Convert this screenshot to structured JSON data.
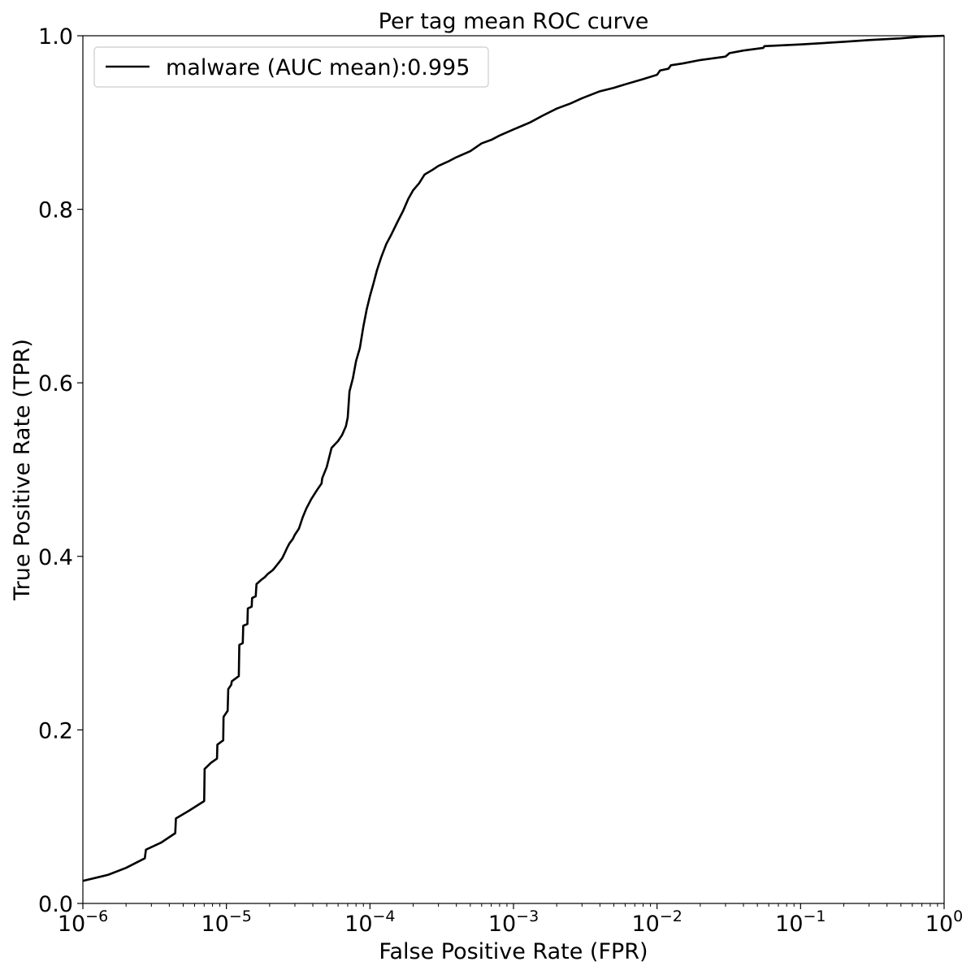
{
  "chart_data": {
    "type": "line",
    "title": "Per tag mean ROC curve",
    "xlabel": "False Positive Rate (FPR)",
    "ylabel": "True Positive Rate (TPR)",
    "xscale": "log",
    "xlim": [
      1e-06,
      1
    ],
    "ylim": [
      0,
      1
    ],
    "grid": false,
    "legend": {
      "placement": "top-left"
    },
    "x_ticks": [
      {
        "value": 1e-06,
        "base": "10",
        "exp": "−6"
      },
      {
        "value": 1e-05,
        "base": "10",
        "exp": "−5"
      },
      {
        "value": 0.0001,
        "base": "10",
        "exp": "−4"
      },
      {
        "value": 0.001,
        "base": "10",
        "exp": "−3"
      },
      {
        "value": 0.01,
        "base": "10",
        "exp": "−2"
      },
      {
        "value": 0.1,
        "base": "10",
        "exp": "−1"
      },
      {
        "value": 1,
        "base": "10",
        "exp": "0"
      }
    ],
    "y_ticks": [
      {
        "value": 0.0,
        "label": "0.0"
      },
      {
        "value": 0.2,
        "label": "0.2"
      },
      {
        "value": 0.4,
        "label": "0.4"
      },
      {
        "value": 0.6,
        "label": "0.6"
      },
      {
        "value": 0.8,
        "label": "0.8"
      },
      {
        "value": 1.0,
        "label": "1.0"
      }
    ],
    "series": [
      {
        "name": "malware (AUC mean):0.995",
        "color": "#000000",
        "x": [
          1e-06,
          1.5e-06,
          2e-06,
          2.7e-06,
          2.75e-06,
          3.5e-06,
          4.4e-06,
          4.45e-06,
          5.5e-06,
          7e-06,
          7.05e-06,
          7.8e-06,
          8.6e-06,
          8.65e-06,
          9.5e-06,
          9.55e-06,
          1.02e-05,
          1.03e-05,
          1.08e-05,
          1.09e-05,
          1.22e-05,
          1.23e-05,
          1.3e-05,
          1.31e-05,
          1.4e-05,
          1.41e-05,
          1.5e-05,
          1.51e-05,
          1.6e-05,
          1.62e-05,
          1.75e-05,
          1.85e-05,
          1.95e-05,
          2.1e-05,
          2.2e-05,
          2.3e-05,
          2.45e-05,
          2.55e-05,
          2.65e-05,
          2.75e-05,
          2.9e-05,
          3e-05,
          3.2e-05,
          3.4e-05,
          3.6e-05,
          3.9e-05,
          4.3e-05,
          4.6e-05,
          4.65e-05,
          5e-05,
          5.4e-05,
          6e-05,
          6.4e-05,
          6.8e-05,
          7e-05,
          7.2e-05,
          7.6e-05,
          8e-05,
          8.5e-05,
          9e-05,
          9.5e-05,
          0.0001,
          0.000106,
          0.000112,
          0.00012,
          0.00013,
          0.00014,
          0.000155,
          0.00017,
          0.000185,
          0.0002,
          0.00022,
          0.00024,
          0.00027,
          0.0003,
          0.00035,
          0.0004,
          0.0005,
          0.0006,
          0.0007,
          0.0008,
          0.001,
          0.0013,
          0.0016,
          0.002,
          0.0025,
          0.003,
          0.004,
          0.005,
          0.006,
          0.008,
          0.01,
          0.0105,
          0.012,
          0.0125,
          0.015,
          0.02,
          0.03,
          0.032,
          0.04,
          0.055,
          0.056,
          0.1,
          0.2,
          0.3,
          0.5,
          0.7,
          1.0
        ],
        "y": [
          0.026,
          0.033,
          0.041,
          0.052,
          0.062,
          0.07,
          0.081,
          0.098,
          0.107,
          0.118,
          0.155,
          0.162,
          0.167,
          0.183,
          0.188,
          0.215,
          0.222,
          0.247,
          0.252,
          0.256,
          0.262,
          0.298,
          0.3,
          0.32,
          0.322,
          0.34,
          0.342,
          0.352,
          0.354,
          0.368,
          0.373,
          0.376,
          0.38,
          0.384,
          0.388,
          0.392,
          0.398,
          0.404,
          0.41,
          0.415,
          0.42,
          0.425,
          0.432,
          0.445,
          0.455,
          0.466,
          0.477,
          0.484,
          0.49,
          0.503,
          0.525,
          0.533,
          0.54,
          0.55,
          0.56,
          0.59,
          0.605,
          0.625,
          0.64,
          0.665,
          0.685,
          0.7,
          0.715,
          0.73,
          0.745,
          0.76,
          0.77,
          0.785,
          0.798,
          0.812,
          0.822,
          0.83,
          0.84,
          0.845,
          0.85,
          0.855,
          0.86,
          0.867,
          0.876,
          0.88,
          0.885,
          0.892,
          0.9,
          0.908,
          0.916,
          0.922,
          0.928,
          0.936,
          0.94,
          0.944,
          0.95,
          0.955,
          0.96,
          0.962,
          0.966,
          0.968,
          0.972,
          0.976,
          0.98,
          0.983,
          0.986,
          0.988,
          0.99,
          0.993,
          0.995,
          0.997,
          0.999,
          1.0
        ]
      }
    ]
  }
}
